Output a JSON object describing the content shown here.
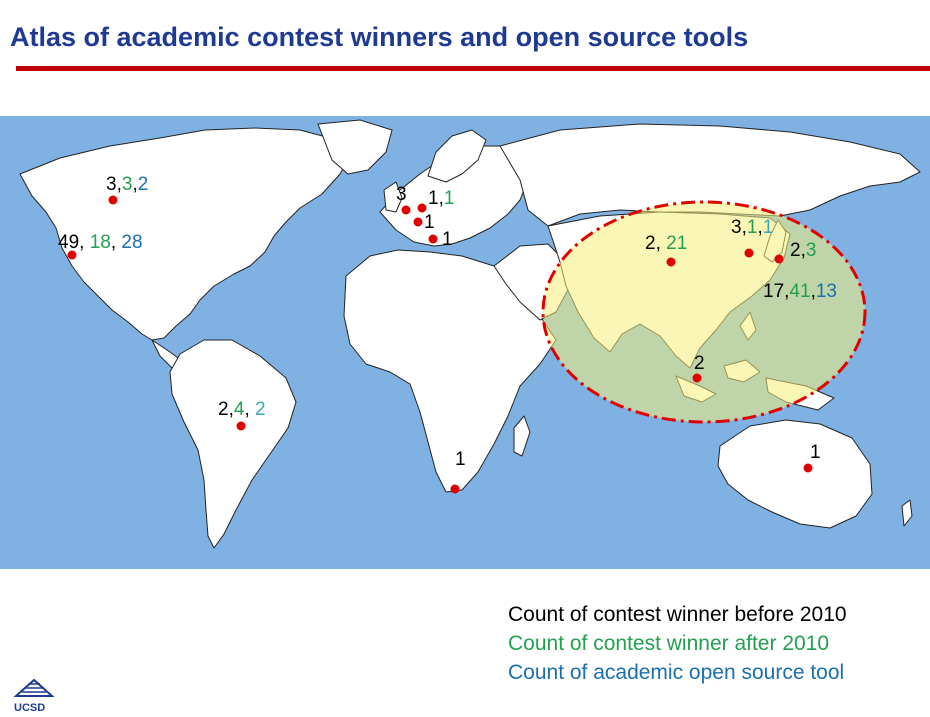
{
  "title": "Atlas of academic contest winners and open source tools",
  "colors": {
    "before_2010": "#000000",
    "after_2010": "#22a050",
    "open_source": "#1a6fb0",
    "open_source_light": "#3aa7c0",
    "marker": "#e00000",
    "ocean": "#7fb2e3",
    "land": "#ffffff",
    "highlight": "#f5f07a",
    "highlight_border": "#e00000",
    "title": "#1f3a93",
    "rule": "#c00000"
  },
  "legend": {
    "before": "Count of contest winner before 2010",
    "after": "Count of contest winner after 2010",
    "tool": "Count of academic open source tool"
  },
  "locations": [
    {
      "id": "canada",
      "parts": [
        "3",
        "3",
        "2"
      ],
      "seps": [
        ",",
        ","
      ]
    },
    {
      "id": "united-states",
      "parts": [
        "49",
        "18",
        "28"
      ],
      "seps": [
        ", ",
        ", "
      ]
    },
    {
      "id": "brazil",
      "parts": [
        "2",
        "4",
        "2"
      ],
      "seps": [
        ",",
        ", "
      ]
    },
    {
      "id": "uk",
      "parts": [
        "3"
      ],
      "seps": []
    },
    {
      "id": "germany",
      "parts": [
        "1",
        "1"
      ],
      "seps": [
        ","
      ]
    },
    {
      "id": "switzerland",
      "parts": [
        "1"
      ],
      "seps": []
    },
    {
      "id": "italy",
      "parts": [
        "1"
      ],
      "seps": []
    },
    {
      "id": "south-africa",
      "parts": [
        "1"
      ],
      "seps": []
    },
    {
      "id": "china",
      "parts": [
        "2",
        "21"
      ],
      "seps": [
        ", "
      ]
    },
    {
      "id": "korea",
      "parts": [
        "3",
        "1",
        "1"
      ],
      "seps": [
        ",",
        ","
      ]
    },
    {
      "id": "japan",
      "parts": [
        "2",
        "3"
      ],
      "seps": [
        ","
      ]
    },
    {
      "id": "asia-total",
      "parts": [
        "17",
        "41",
        "13"
      ],
      "seps": [
        ",",
        ","
      ]
    },
    {
      "id": "singapore",
      "parts": [
        "2"
      ],
      "seps": []
    },
    {
      "id": "australia",
      "parts": [
        "1"
      ],
      "seps": []
    }
  ],
  "logo": {
    "name": "ucsd-logo-icon",
    "text": "UCSD"
  }
}
